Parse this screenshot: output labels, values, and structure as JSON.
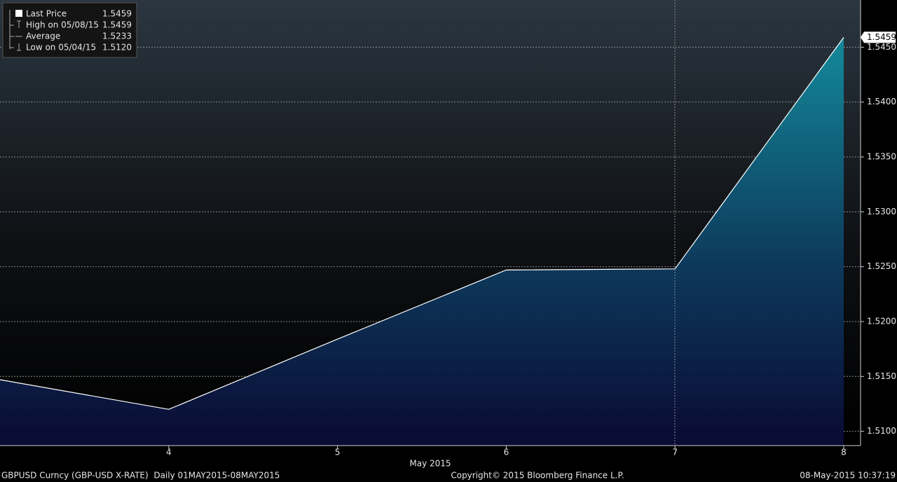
{
  "chart_data": {
    "type": "area",
    "x_label": "May 2015",
    "categories": [
      null,
      "4",
      "5",
      "6",
      "7",
      "8"
    ],
    "series": [
      {
        "name": "Last Price",
        "color": "#ffffff",
        "values": [
          1.5147,
          1.512,
          1.5184,
          1.5247,
          1.5248,
          1.5459
        ]
      }
    ],
    "last_price_label": "1.5459",
    "ylim": [
      1.5087,
      1.5493
    ],
    "yticks": [
      {
        "value": 1.51,
        "label": "1.5100"
      },
      {
        "value": 1.515,
        "label": "1.5150"
      },
      {
        "value": 1.52,
        "label": "1.5200"
      },
      {
        "value": 1.525,
        "label": "1.5250"
      },
      {
        "value": 1.53,
        "label": "1.5300"
      },
      {
        "value": 1.535,
        "label": "1.5350"
      },
      {
        "value": 1.54,
        "label": "1.5400"
      },
      {
        "value": 1.545,
        "label": "1.5450"
      }
    ],
    "grid": true,
    "legend": [
      {
        "label": "Last Price",
        "value": "1.5459"
      },
      {
        "label": "High on 05/08/15",
        "value": "1.5459"
      },
      {
        "label": "Average",
        "value": "1.5233"
      },
      {
        "label": "Low on 05/04/15",
        "value": "1.5120"
      }
    ],
    "footer": {
      "left": "GBPUSD Curncy (GBP-USD X-RATE)  Daily 01MAY2015-08MAY2015",
      "center": "Copyright© 2015 Bloomberg Finance L.P.",
      "right": "08-May-2015 10:37:19"
    }
  }
}
